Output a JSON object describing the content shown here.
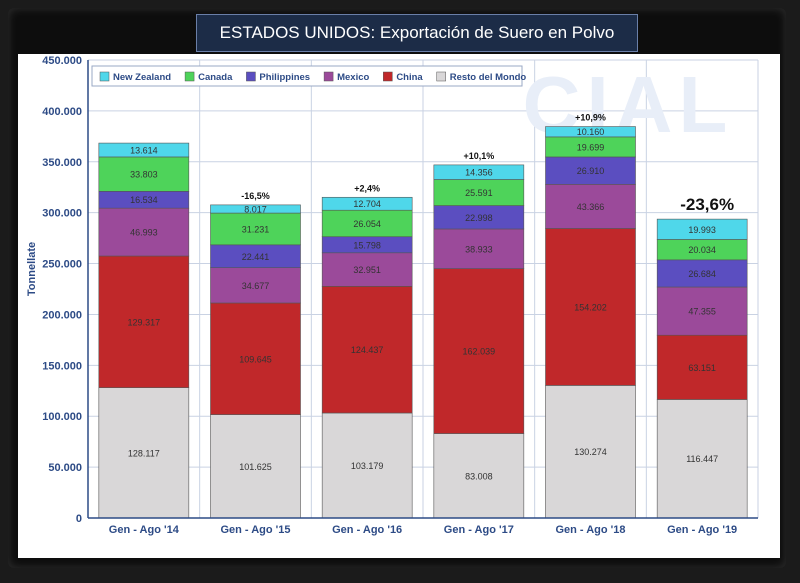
{
  "title": "ESTADOS UNIDOS: Exportación de Suero en Polvo",
  "chart_data": {
    "type": "bar",
    "stacked": true,
    "title": "ESTADOS UNIDOS: Exportación de Suero en Polvo",
    "ylabel": "Tonnellate",
    "xlabel": "",
    "ylim": [
      0,
      450000
    ],
    "yticks": [
      "0",
      "50.000",
      "100.000",
      "150.000",
      "200.000",
      "250.000",
      "300.000",
      "350.000",
      "400.000",
      "450.000"
    ],
    "grid": true,
    "legend_position": "top-left",
    "categories": [
      "Gen - Ago '14",
      "Gen - Ago '15",
      "Gen - Ago '16",
      "Gen - Ago '17",
      "Gen - Ago '18",
      "Gen - Ago '19"
    ],
    "series": [
      {
        "name": "Resto del Mondo",
        "color": "#d9d7d8",
        "values": [
          128117,
          101625,
          103179,
          83008,
          130274,
          116447
        ],
        "labels": [
          "128.117",
          "101.625",
          "103.179",
          "83.008",
          "130.274",
          "116.447"
        ]
      },
      {
        "name": "China",
        "color": "#c0282a",
        "values": [
          129317,
          109645,
          124437,
          162039,
          154202,
          63151
        ],
        "labels": [
          "129.317",
          "109.645",
          "124.437",
          "162.039",
          "154.202",
          "63.151"
        ]
      },
      {
        "name": "Mexico",
        "color": "#9b4a9a",
        "values": [
          46993,
          34677,
          32951,
          38933,
          43366,
          47355
        ],
        "labels": [
          "46.993",
          "34.677",
          "32.951",
          "38.933",
          "43.366",
          "47.355"
        ]
      },
      {
        "name": "Philippines",
        "color": "#5b4ec0",
        "values": [
          16534,
          22441,
          15798,
          22998,
          26910,
          26684
        ],
        "labels": [
          "16.534",
          "22.441",
          "15.798",
          "22.998",
          "26.910",
          "26.684"
        ]
      },
      {
        "name": "Canada",
        "color": "#4ed35a",
        "values": [
          33803,
          31231,
          26054,
          25591,
          19699,
          20034
        ],
        "labels": [
          "33.803",
          "31.231",
          "26.054",
          "25.591",
          "19.699",
          "20.034"
        ]
      },
      {
        "name": "New Zealand",
        "color": "#4fd7ea",
        "values": [
          13614,
          8017,
          12704,
          14356,
          10160,
          19993
        ],
        "labels": [
          "13.614",
          "8.017",
          "12.704",
          "14.356",
          "10.160",
          "19.993"
        ]
      }
    ],
    "legend_order": [
      "New Zealand",
      "Canada",
      "Philippines",
      "Mexico",
      "China",
      "Resto del Mondo"
    ],
    "annotations": [
      "",
      "-16,5%",
      "+2,4%",
      "+10,1%",
      "+10,9%",
      "-23,6%"
    ],
    "watermark": "CIAL"
  }
}
